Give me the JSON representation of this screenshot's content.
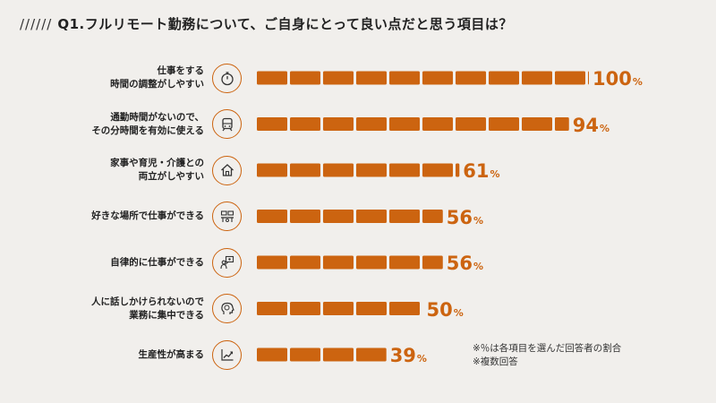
{
  "title": {
    "slashes": "//////",
    "text": "Q1.フルリモート勤務について、ご自身にとって良い点だと思う項目は？"
  },
  "notes": [
    "※％は各項目を選んだ回答者の割合",
    "※複数回答"
  ],
  "colors": {
    "bar": "#cc6410",
    "icon_border": "#cc6410",
    "background": "#f1efec"
  },
  "chart_data": {
    "type": "bar",
    "orientation": "horizontal",
    "xlim": [
      0,
      100
    ],
    "unit": "%",
    "bars": [
      {
        "label_lines": [
          "仕事をする",
          "時間の調整がしやすい"
        ],
        "value": 100,
        "icon": "stopwatch-icon"
      },
      {
        "label_lines": [
          "通勤時間がないので、",
          "その分時間を有効に使える"
        ],
        "value": 94,
        "icon": "train-icon"
      },
      {
        "label_lines": [
          "家事や育児・介護との",
          "両立がしやすい"
        ],
        "value": 61,
        "icon": "house-icon"
      },
      {
        "label_lines": [
          "好きな場所で仕事ができる"
        ],
        "value": 56,
        "icon": "workspace-icon"
      },
      {
        "label_lines": [
          "自律的に仕事ができる"
        ],
        "value": 56,
        "icon": "presenter-icon"
      },
      {
        "label_lines": [
          "人に話しかけられないので",
          "業務に集中できる"
        ],
        "value": 50,
        "icon": "brain-head-icon"
      },
      {
        "label_lines": [
          "生産性が高まる"
        ],
        "value": 39,
        "icon": "line-chart-icon"
      }
    ]
  }
}
